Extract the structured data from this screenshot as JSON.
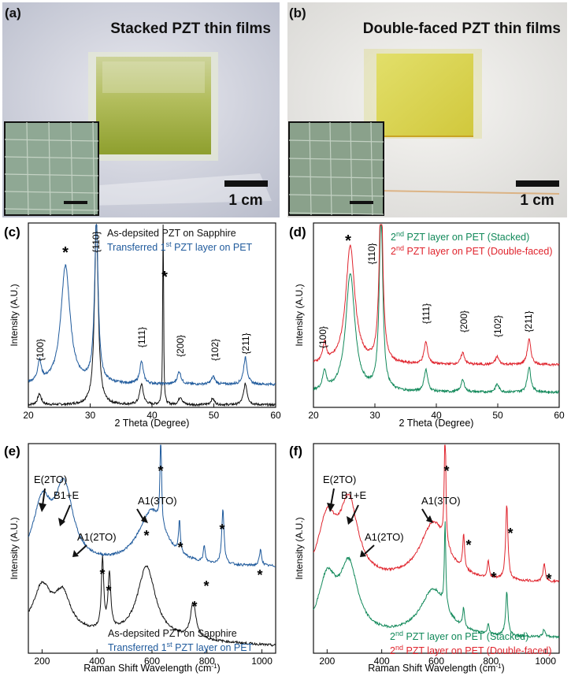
{
  "colors": {
    "blue": "#1f5a9c",
    "black": "#111111",
    "red": "#e0252e",
    "green": "#12895a"
  },
  "panel_a": {
    "label": "(a)",
    "title": "Stacked PZT thin films",
    "scalebar": "1 cm"
  },
  "panel_b": {
    "label": "(b)",
    "title": "Double-faced PZT thin films",
    "scalebar": "1 cm"
  },
  "chart_data": [
    {
      "panel": "(c)",
      "type": "line",
      "xlabel": "2 Theta (Degree)",
      "ylabel": "Intensity (A.U.)",
      "xlim": [
        20,
        60
      ],
      "xticks": [
        "20",
        "30",
        "40",
        "50",
        "60"
      ],
      "series": [
        {
          "name": "As-depsited PZT on Sapphire",
          "color": "#111111",
          "peaks": [
            [
              21.8,
              14
            ],
            [
              31.0,
              235
            ],
            [
              38.3,
              26
            ],
            [
              41.8,
              260
            ],
            [
              44.6,
              10
            ],
            [
              49.8,
              8
            ],
            [
              55.1,
              27
            ]
          ]
        },
        {
          "name": "Transferred 1st PZT layer on PET",
          "color": "#1f5a9c",
          "peaks": [
            [
              21.8,
              26
            ],
            [
              26.0,
              150
            ],
            [
              31.0,
              205
            ],
            [
              38.3,
              28
            ],
            [
              44.4,
              16
            ],
            [
              49.9,
              10
            ],
            [
              55.1,
              34
            ]
          ]
        }
      ],
      "legend": [
        {
          "pre": "As-depsited PZT on Sapphire",
          "sup": "",
          "post": ""
        },
        {
          "pre": "Transferred 1",
          "sup": "st",
          "post": " PZT layer on PET"
        }
      ],
      "annotations": {
        "p100": "{100}",
        "p110": "{110}",
        "p111": "{111}",
        "p200": "{200}",
        "p102": "{102}",
        "p211": "{211}",
        "star": "*"
      }
    },
    {
      "panel": "(d)",
      "type": "line",
      "xlabel": "2 Theta (Degree)",
      "ylabel": "Intensity (A.U.)",
      "xlim": [
        20,
        60
      ],
      "xticks": [
        "20",
        "30",
        "40",
        "50",
        "60"
      ],
      "series": [
        {
          "name": "2nd PZT layer on PET (Stacked)",
          "color": "#12895a",
          "peaks": [
            [
              21.8,
              24
            ],
            [
              26.0,
              150
            ],
            [
              31.0,
              225
            ],
            [
              38.3,
              28
            ],
            [
              44.3,
              15
            ],
            [
              49.9,
              10
            ],
            [
              55.1,
              32
            ]
          ]
        },
        {
          "name": "2nd PZT layer on PET (Double-faced)",
          "color": "#e0252e",
          "peaks": [
            [
              21.8,
              24
            ],
            [
              26.0,
              150
            ],
            [
              31.0,
              225
            ],
            [
              38.3,
              28
            ],
            [
              44.3,
              15
            ],
            [
              49.9,
              10
            ],
            [
              55.1,
              32
            ]
          ]
        }
      ],
      "legend": [
        {
          "pre": "2",
          "sup": "nd",
          "post": " PZT layer on PET (Stacked)"
        },
        {
          "pre": "2",
          "sup": "nd",
          "post": " PZT layer on PET (Double-faced)"
        }
      ],
      "annotations": {
        "p100": "{100}",
        "p110": "{110}",
        "p111": "{111}",
        "p200": "{200}",
        "p102": "{102}",
        "p211": "{211}",
        "star": "*"
      }
    },
    {
      "panel": "(e)",
      "type": "line",
      "xlabel": "Raman Shift Wavelength",
      "xunit": "(cm",
      "xunit_sup": "-1",
      "xunit_end": ")",
      "ylabel": "Intensity (A.U.)",
      "xlim": [
        150,
        1050
      ],
      "xticks": [
        "200",
        "400",
        "600",
        "800",
        "1000"
      ],
      "series": [
        {
          "name": "As-depsited PZT on Sapphire",
          "color": "#111111"
        },
        {
          "name": "Transferred 1st PZT layer on PET",
          "color": "#1f5a9c"
        }
      ],
      "legend": [
        {
          "pre": "As-depsited PZT on Sapphire",
          "sup": "",
          "post": ""
        },
        {
          "pre": "Transferred 1",
          "sup": "st",
          "post": " PZT layer on PET"
        }
      ],
      "annotations": {
        "e2to": "E(2TO)",
        "b1e": "B1+E",
        "a12to": "A1(2TO)",
        "a13to": "A1(3TO)",
        "star": "*"
      }
    },
    {
      "panel": "(f)",
      "type": "line",
      "xlabel": "Raman Shift Wavelength",
      "xunit": "(cm",
      "xunit_sup": "-1",
      "xunit_end": ")",
      "ylabel": "Intensity (A.U.)",
      "xlim": [
        150,
        1050
      ],
      "xticks": [
        "200",
        "400",
        "600",
        "800",
        "1000"
      ],
      "series": [
        {
          "name": "2nd PZT layer on PET (Stacked)",
          "color": "#12895a"
        },
        {
          "name": "2nd PZT layer on PET (Double-faced)",
          "color": "#e0252e"
        }
      ],
      "legend": [
        {
          "pre": "2",
          "sup": "nd",
          "post": " PZT layer on PET (Stacked)"
        },
        {
          "pre": "2",
          "sup": "nd",
          "post": " PZT layer on PET (Double-faced)"
        }
      ],
      "annotations": {
        "e2to": "E(2TO)",
        "b1e": "B1+E",
        "a12to": "A1(2TO)",
        "a13to": "A1(3TO)",
        "star": "*"
      }
    }
  ]
}
